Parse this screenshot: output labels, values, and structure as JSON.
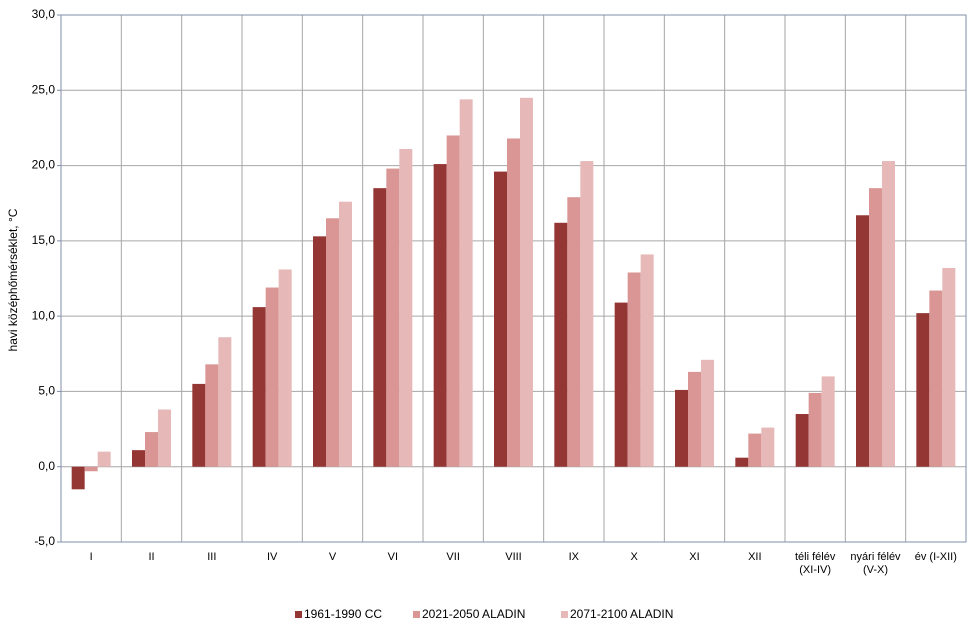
{
  "chart_data": {
    "type": "bar",
    "ylabel": "havi középhőmérséklet, °C",
    "categories": [
      "I",
      "II",
      "III",
      "IV",
      "V",
      "VI",
      "VII",
      "VIII",
      "IX",
      "X",
      "XI",
      "XII",
      "téli félév (XI-IV)",
      "nyári félév (V-X)",
      "év (I-XII)"
    ],
    "series": [
      {
        "name": "1961-1990 CC",
        "color": "#943634",
        "values": [
          -1.5,
          1.1,
          5.5,
          10.6,
          15.3,
          18.5,
          20.1,
          19.6,
          16.2,
          10.9,
          5.1,
          0.6,
          3.5,
          16.7,
          10.2
        ]
      },
      {
        "name": "2021-2050 ALADIN",
        "color": "#d99694",
        "values": [
          -0.3,
          2.3,
          6.8,
          11.9,
          16.5,
          19.8,
          22.0,
          21.8,
          17.9,
          12.9,
          6.3,
          2.2,
          4.9,
          18.5,
          11.7
        ]
      },
      {
        "name": "2071-2100 ALADIN",
        "color": "#e6b9b8",
        "values": [
          1.0,
          3.8,
          8.6,
          13.1,
          17.6,
          21.1,
          24.4,
          24.5,
          20.3,
          14.1,
          7.1,
          2.6,
          6.0,
          20.3,
          13.2
        ]
      }
    ],
    "ylim": [
      -5,
      30
    ],
    "yticks": [
      {
        "value": -5,
        "label": "-5,0"
      },
      {
        "value": 0,
        "label": "0,0"
      },
      {
        "value": 5,
        "label": "5,0"
      },
      {
        "value": 10,
        "label": "10,0"
      },
      {
        "value": 15,
        "label": "15,0"
      },
      {
        "value": 20,
        "label": "20,0"
      },
      {
        "value": 25,
        "label": "25,0"
      },
      {
        "value": 30,
        "label": "30,0"
      }
    ],
    "grid": true,
    "legend": "bottom"
  }
}
